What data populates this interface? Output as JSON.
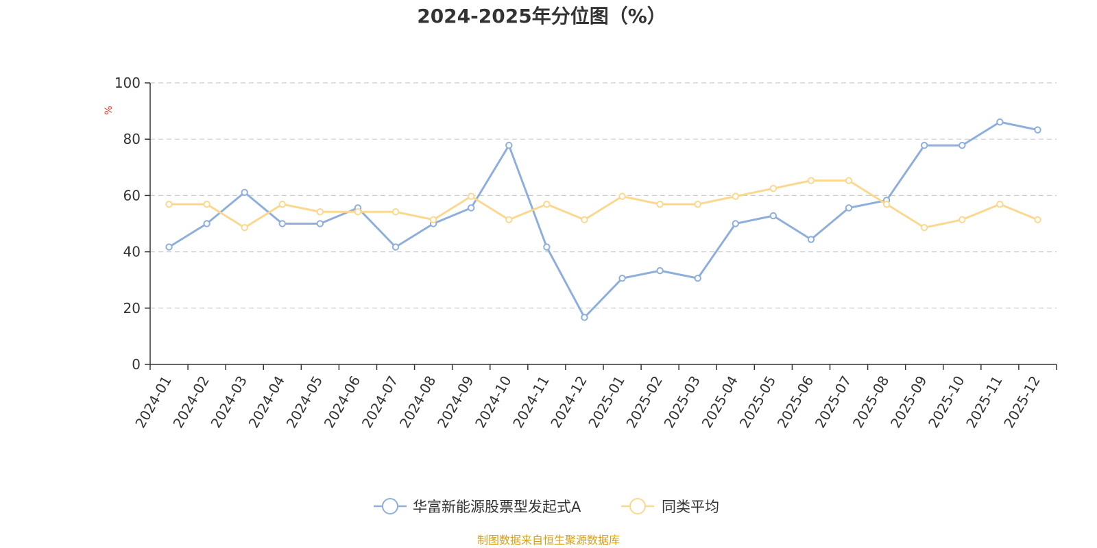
{
  "chart_data": {
    "type": "line",
    "title": "2024-2025年分位图（%）",
    "ylabel": "%",
    "xlabel": "",
    "ylim": [
      0,
      100
    ],
    "yticks": [
      0,
      20,
      40,
      60,
      80,
      100
    ],
    "grid": true,
    "legend_position": "bottom",
    "categories": [
      "2024-01",
      "2024-02",
      "2024-03",
      "2024-04",
      "2024-05",
      "2024-06",
      "2024-07",
      "2024-08",
      "2024-09",
      "2024-10",
      "2024-11",
      "2024-12",
      "2025-01",
      "2025-02",
      "2025-03",
      "2025-04",
      "2025-05",
      "2025-06",
      "2025-07",
      "2025-08",
      "2025-09",
      "2025-10",
      "2025-11",
      "2025-12"
    ],
    "series": [
      {
        "name": "华富新能源股票型发起式A",
        "color": "#8eaedb",
        "values": [
          41.7,
          50.0,
          61.1,
          50.0,
          50.0,
          55.6,
          41.7,
          50.0,
          55.6,
          77.8,
          41.7,
          16.7,
          30.6,
          33.3,
          30.6,
          50.0,
          52.8,
          44.4,
          55.6,
          58.3,
          77.8,
          77.8,
          86.1,
          83.3
        ]
      },
      {
        "name": "同类平均",
        "color": "#fbd88f",
        "values": [
          56.9,
          56.9,
          48.6,
          56.9,
          54.2,
          54.2,
          54.2,
          51.4,
          59.7,
          51.4,
          56.9,
          51.4,
          59.7,
          56.9,
          56.9,
          59.7,
          62.5,
          65.3,
          65.3,
          56.9,
          48.6,
          51.4,
          56.9,
          51.4
        ]
      }
    ]
  },
  "source_text": "制图数据来自恒生聚源数据库",
  "colors": {
    "axis": "#333333",
    "grid": "#cccccc",
    "unit": "#e8392b",
    "source": "#d4a017"
  }
}
